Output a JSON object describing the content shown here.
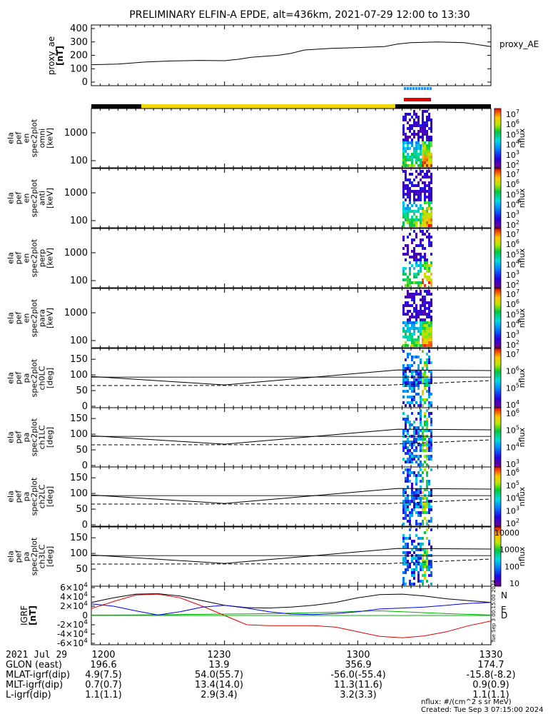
{
  "title": "PRELIMINARY ELFIN-A EPDE, alt=436km, 2021-07-29 12:00 to 13:30",
  "colors": {
    "frame": "#000000",
    "ae_line": "#000000",
    "status_yellow": "#f5d800",
    "status_black": "#000000",
    "marker_blue": "#2a8cff",
    "marker_red": "#e00000",
    "igrf_N": "#000000",
    "igrf_E": "#00b000",
    "igrf_D": "#e00000",
    "igrf_blue": "#0000e0"
  },
  "time_axis": {
    "start": "12:00",
    "end": "13:30",
    "ticks": [
      "1200",
      "1230",
      "1300",
      "1330"
    ]
  },
  "ephemeris": {
    "header": "2021 Jul 29",
    "rows": [
      {
        "label": "GLON (east)",
        "values": [
          "196.6",
          "13.9",
          "356.9",
          "174.7"
        ]
      },
      {
        "label": "MLAT-igrf(dip)",
        "values": [
          "4.9(7.5)",
          "54.0(55.7)",
          "-56.0(-55.4)",
          "-15.8(-8.2)"
        ]
      },
      {
        "label": "MLT-igrf(dip)",
        "values": [
          "0.7(0.7)",
          "13.4(14.0)",
          "11.3(11.6)",
          "0.9(0.9)"
        ]
      },
      {
        "label": "L-igrf(dip)",
        "values": [
          "1.1(1.1)",
          "2.9(3.4)",
          "3.2(3.3)",
          "1.1(1.1)"
        ]
      }
    ]
  },
  "footer": {
    "units": "nflux: #/(cm^2 s sr MeV)",
    "created": "Created: Tue Sep  3 07:15:00 2024",
    "side_stamp": "Tue Sep 3 00:15:00 2024"
  },
  "chart_data": [
    {
      "type": "line",
      "ylabel": "proxy_ae [nT]",
      "series_label": "proxy_AE",
      "yticks": [
        "400",
        "300",
        "200",
        "100",
        "0"
      ],
      "ylim": [
        0,
        400
      ],
      "x_hours": [
        12.0,
        12.1,
        12.2,
        12.3,
        12.4,
        12.5,
        12.55,
        12.6,
        12.7,
        12.75,
        12.8,
        12.9,
        13.0,
        13.1,
        13.15,
        13.2,
        13.3,
        13.4,
        13.5
      ],
      "values": [
        130,
        135,
        150,
        158,
        162,
        160,
        170,
        185,
        200,
        215,
        240,
        252,
        258,
        265,
        285,
        295,
        300,
        295,
        265
      ]
    },
    {
      "type": "heatmap",
      "ylabel": [
        "ela",
        "pef",
        "en",
        "spec2plot",
        "omni",
        "[keV]"
      ],
      "yticks": [
        "1000",
        "100"
      ],
      "colorbar": {
        "label": "nflux",
        "ticks": [
          "10^7",
          "10^6",
          "10^5",
          "10^4",
          "10^3",
          "10^2"
        ]
      }
    },
    {
      "type": "heatmap",
      "ylabel": [
        "ela",
        "pef",
        "en",
        "spec2plot",
        "anti",
        "[keV]"
      ],
      "yticks": [
        "1000",
        "100"
      ],
      "colorbar": {
        "label": "nflux",
        "ticks": [
          "10^7",
          "10^6",
          "10^5",
          "10^4",
          "10^3",
          "10^2"
        ]
      }
    },
    {
      "type": "heatmap",
      "ylabel": [
        "ela",
        "pef",
        "en",
        "spec2plot",
        "perp",
        "[keV]"
      ],
      "yticks": [
        "1000",
        "100"
      ],
      "colorbar": {
        "label": "nflux",
        "ticks": [
          "10^7",
          "10^6",
          "10^5",
          "10^4",
          "10^3",
          "10^2"
        ]
      }
    },
    {
      "type": "heatmap",
      "ylabel": [
        "ela",
        "pef",
        "en",
        "spec2plot",
        "para",
        "[keV]"
      ],
      "yticks": [
        "1000",
        "100"
      ],
      "colorbar": {
        "label": "nflux",
        "ticks": [
          "10^7",
          "10^6",
          "10^5",
          "10^4",
          "10^3",
          "10^2"
        ]
      }
    },
    {
      "type": "heatmap",
      "ylabel": [
        "ela",
        "pef",
        "pa",
        "spec2plot",
        "ch0LC",
        "[deg]"
      ],
      "yticks": [
        "150",
        "100",
        "50",
        "0"
      ],
      "ylim": [
        0,
        180
      ],
      "colorbar": {
        "label": "nflux",
        "ticks": [
          "10^7",
          "10^6",
          "10^5",
          "10^4"
        ]
      }
    },
    {
      "type": "heatmap",
      "ylabel": [
        "ela",
        "pef",
        "pa",
        "spec2plot",
        "ch1LC",
        "[deg]"
      ],
      "yticks": [
        "150",
        "100",
        "50",
        "0"
      ],
      "ylim": [
        0,
        180
      ],
      "colorbar": {
        "label": "nflux",
        "ticks": [
          "10^6",
          "10^5",
          "10^4",
          "10^3"
        ]
      }
    },
    {
      "type": "heatmap",
      "ylabel": [
        "ela",
        "pef",
        "pa",
        "spec2plot",
        "ch2LC",
        "[deg]"
      ],
      "yticks": [
        "150",
        "100",
        "50",
        "0"
      ],
      "ylim": [
        0,
        180
      ],
      "colorbar": {
        "label": "nflux",
        "ticks": [
          "10^6",
          "10^5",
          "10^4",
          "10^3",
          "10^2"
        ]
      }
    },
    {
      "type": "heatmap",
      "ylabel": [
        "ela",
        "pef",
        "pa",
        "spec2plot",
        "ch3LC",
        "[deg]"
      ],
      "yticks": [
        "150",
        "100",
        "50"
      ],
      "ylim": [
        0,
        180
      ],
      "colorbar": {
        "label": "nflux",
        "ticks": [
          "10000",
          "1000",
          "100",
          "10"
        ]
      }
    },
    {
      "type": "line",
      "ylabel": "IGRF [nT]",
      "yticks": [
        "6x10^4",
        "4x10^4",
        "2x10^4",
        "0",
        "-2x10^4",
        "-4x10^4",
        "-6x10^4"
      ],
      "ylim": [
        -60000,
        60000
      ],
      "legend": [
        "N",
        "E",
        "D"
      ],
      "x_hours": [
        12.0,
        12.083,
        12.167,
        12.25,
        12.333,
        12.417,
        12.5,
        12.583,
        12.667,
        12.75,
        12.833,
        12.917,
        13.0,
        13.083,
        13.167,
        13.25,
        13.333,
        13.417,
        13.5
      ],
      "series": [
        {
          "name": "N",
          "values": [
            28000,
            38000,
            46000,
            47000,
            42000,
            32000,
            22000,
            17000,
            16000,
            18000,
            22000,
            28000,
            38000,
            45000,
            46000,
            42000,
            36000,
            32000,
            28000
          ]
        },
        {
          "name": "E",
          "values": [
            1000,
            1000,
            1200,
            1500,
            2000,
            2500,
            3000,
            3500,
            4000,
            5000,
            6000,
            7000,
            9000,
            10000,
            8000,
            6000,
            4000,
            2500,
            1000
          ]
        },
        {
          "name": "D",
          "values": [
            15000,
            30000,
            44000,
            46000,
            38000,
            20000,
            0,
            -20000,
            -22000,
            -22000,
            -22000,
            -25000,
            -35000,
            -45000,
            -48000,
            -44000,
            -35000,
            -22000,
            -12000
          ]
        },
        {
          "name": "",
          "values": [
            25000,
            20000,
            10000,
            1000,
            8000,
            18000,
            22000,
            16000,
            8000,
            3000,
            2000,
            4000,
            8000,
            14000,
            16000,
            18000,
            22000,
            26000,
            28000
          ]
        }
      ]
    }
  ]
}
